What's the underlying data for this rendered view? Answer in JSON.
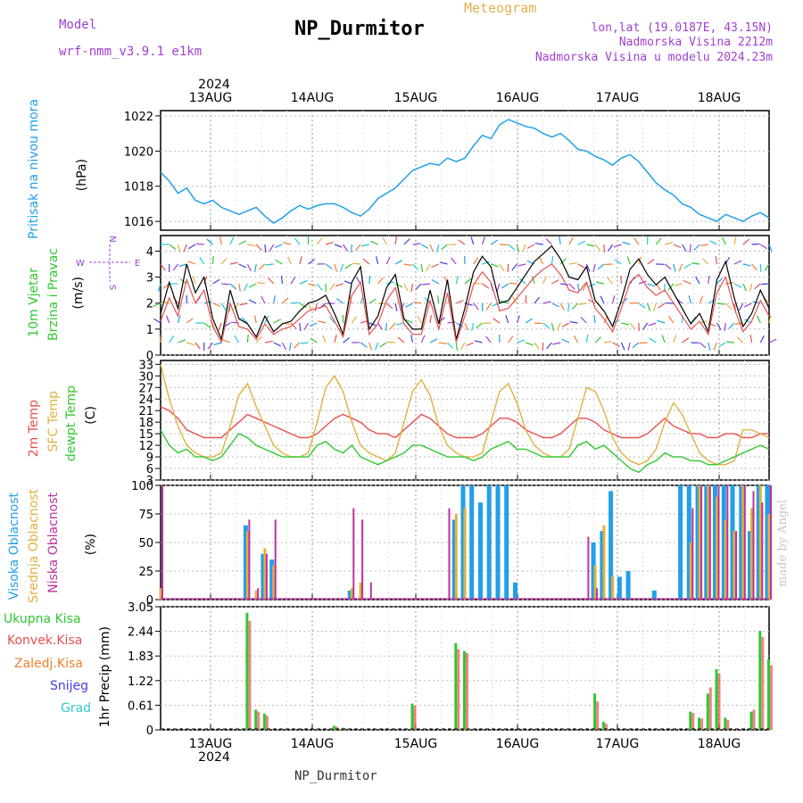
{
  "header": {
    "title": "NP_Durmitor",
    "model_label": "Model",
    "model_name": "wrf-nmm_v3.9.1 e1km",
    "meteogram_label": "Meteogram",
    "location_line1": "lon,lat (19.0187E, 43.15N)",
    "location_line2": "Nadmorska Visina 2212m",
    "location_line3": "Nadmorska Visina u modelu 2024.23m",
    "footer_name": "NP_Durmitor",
    "made_by": "made by Angel"
  },
  "time_axis": {
    "year": "2024",
    "days": [
      "13AUG",
      "14AUG",
      "15AUG",
      "16AUG",
      "17AUG",
      "18AUG"
    ]
  },
  "colors": {
    "pressure": "#20a0e8",
    "temp2m": "#e85050",
    "sfc_temp": "#e0b040",
    "dewpt": "#30c830",
    "high_cloud": "#20a0e8",
    "mid_cloud": "#e0b040",
    "low_cloud": "#c030a0",
    "total_precip": "#30c830",
    "conv_precip": "#e85050",
    "frozen_precip": "#f08030",
    "snow": "#4040e0",
    "hail": "#30c8c8"
  },
  "chart_data": [
    {
      "type": "line",
      "ylabel": "(hPa)",
      "side_label": "Pritisak na nivou mora",
      "yticks": [
        "1016",
        "1018",
        "1020",
        "1022"
      ],
      "ylim": [
        1015.5,
        1022.3
      ],
      "series": [
        {
          "values": [
            1018.8,
            1018.3,
            1017.6,
            1017.9,
            1017.2,
            1017.0,
            1017.2,
            1016.8,
            1016.6,
            1016.4,
            1016.6,
            1016.8,
            1016.3,
            1015.9,
            1016.2,
            1016.6,
            1016.9,
            1016.7,
            1016.9,
            1017.0,
            1017.0,
            1016.8,
            1016.5,
            1016.3,
            1016.7,
            1017.3,
            1017.6,
            1017.9,
            1018.4,
            1018.9,
            1019.1,
            1019.3,
            1019.2,
            1019.6,
            1019.4,
            1019.6,
            1020.3,
            1020.9,
            1020.7,
            1021.5,
            1021.8,
            1021.6,
            1021.4,
            1021.3,
            1021.0,
            1020.8,
            1021.0,
            1020.6,
            1020.1,
            1020.0,
            1019.7,
            1019.5,
            1019.2,
            1019.6,
            1019.8,
            1019.4,
            1018.8,
            1018.2,
            1017.8,
            1017.5,
            1017.0,
            1016.8,
            1016.4,
            1016.2,
            1016.0,
            1016.4,
            1016.2,
            1016.0,
            1016.3,
            1016.5,
            1016.2
          ]
        }
      ]
    },
    {
      "type": "line",
      "ylabel": "(m/s)",
      "side_label_1": "10m Vjetar",
      "side_label_2": "Brzina i Pravac",
      "compass": {
        "n": "N",
        "s": "S",
        "w": "W",
        "e": "E"
      },
      "yticks": [
        "0",
        "1",
        "2",
        "3",
        "4"
      ],
      "ylim": [
        0,
        4.6
      ],
      "series": [
        {
          "values": [
            1.6,
            2.8,
            1.8,
            3.5,
            2.4,
            3.0,
            1.4,
            0.6,
            2.5,
            1.4,
            1.2,
            0.7,
            1.5,
            0.9,
            1.2,
            1.3,
            1.7,
            2.0,
            2.1,
            2.3,
            1.6,
            0.8,
            2.8,
            3.4,
            1.0,
            1.5,
            2.6,
            3.1,
            1.4,
            1.0,
            1.0,
            2.5,
            1.2,
            2.9,
            0.6,
            1.8,
            3.2,
            3.8,
            3.4,
            2.0,
            2.1,
            2.6,
            3.1,
            3.6,
            3.9,
            4.2,
            3.7,
            3.0,
            2.9,
            3.4,
            2.1,
            1.7,
            1.1,
            2.1,
            3.3,
            3.7,
            3.1,
            2.7,
            3.0,
            2.4,
            1.8,
            1.2,
            1.6,
            0.9,
            2.9,
            3.6,
            2.2,
            1.1,
            1.6,
            2.5,
            1.8
          ]
        },
        {
          "values": [
            1.3,
            2.2,
            1.5,
            2.9,
            2.0,
            2.5,
            1.1,
            0.5,
            2.0,
            1.1,
            1.0,
            0.6,
            1.2,
            0.8,
            1.0,
            1.1,
            1.4,
            1.7,
            1.8,
            1.9,
            1.3,
            0.7,
            2.3,
            2.8,
            0.8,
            1.2,
            2.1,
            2.6,
            1.2,
            0.8,
            0.8,
            2.1,
            1.0,
            2.4,
            0.5,
            1.5,
            2.7,
            3.2,
            2.8,
            1.7,
            1.8,
            2.2,
            2.6,
            3.0,
            3.3,
            3.5,
            3.1,
            2.5,
            2.4,
            2.8,
            1.8,
            1.4,
            0.9,
            1.8,
            2.8,
            3.1,
            2.6,
            2.3,
            2.5,
            2.0,
            1.5,
            1.0,
            1.3,
            0.8,
            2.4,
            3.0,
            1.8,
            0.9,
            1.3,
            2.1,
            1.5
          ]
        }
      ]
    },
    {
      "type": "line",
      "ylabel": "(C)",
      "side_label_1": "2m Temp",
      "side_label_2": "SFC Temp",
      "side_label_3": "dewpt Temp",
      "yticks": [
        "3",
        "6",
        "9",
        "12",
        "15",
        "18",
        "21",
        "24",
        "27",
        "30",
        "33"
      ],
      "ylim": [
        3,
        34
      ],
      "series": [
        {
          "name": "2m Temp",
          "values": [
            22,
            21,
            19,
            16,
            15,
            14,
            14,
            14,
            16,
            18,
            20,
            19,
            18,
            17,
            16,
            15,
            14,
            14,
            15,
            17,
            19,
            20,
            19,
            18,
            16,
            15,
            15,
            14,
            16,
            18,
            20,
            19,
            17,
            15,
            14,
            14,
            14,
            15,
            17,
            19,
            19,
            18,
            16,
            15,
            14,
            14,
            15,
            17,
            19,
            19,
            18,
            16,
            15,
            14,
            14,
            14,
            15,
            17,
            19,
            17,
            16,
            15,
            15,
            14,
            14,
            15,
            15,
            14,
            14,
            15,
            15
          ]
        },
        {
          "name": "SFC Temp",
          "values": [
            33,
            24,
            17,
            12,
            10,
            9,
            9,
            10,
            17,
            25,
            28,
            22,
            17,
            12,
            10,
            9,
            9,
            10,
            18,
            27,
            30,
            26,
            18,
            12,
            10,
            9,
            8,
            10,
            18,
            26,
            29,
            25,
            17,
            12,
            10,
            9,
            9,
            10,
            18,
            26,
            28,
            23,
            16,
            12,
            10,
            9,
            9,
            11,
            19,
            27,
            26,
            21,
            14,
            10,
            8,
            7,
            8,
            11,
            18,
            23,
            20,
            15,
            10,
            8,
            7,
            7,
            8,
            16,
            16,
            15,
            14
          ]
        },
        {
          "name": "dewpt Temp",
          "values": [
            16,
            12,
            10,
            11,
            9,
            9,
            8,
            9,
            12,
            15,
            14,
            12,
            11,
            10,
            9,
            9,
            9,
            9,
            12,
            13,
            11,
            10,
            12,
            9,
            8,
            7,
            8,
            9,
            10,
            12,
            12,
            11,
            10,
            9,
            9,
            9,
            8,
            9,
            11,
            12,
            13,
            11,
            11,
            10,
            9,
            9,
            9,
            9,
            12,
            13,
            11,
            12,
            10,
            8,
            6,
            5,
            7,
            8,
            10,
            9,
            9,
            8,
            8,
            7,
            7,
            8,
            9,
            10,
            11,
            12,
            11
          ]
        }
      ]
    },
    {
      "type": "bar",
      "ylabel": "(%)",
      "side_label_1": "Visoka Oblacnost",
      "side_label_2": "Srednja Oblacnost",
      "side_label_3": "Niska Oblacnost",
      "yticks": [
        "0",
        "25",
        "50",
        "75",
        "100"
      ],
      "ylim": [
        0,
        100
      ],
      "series": [
        {
          "name": "Visoka Oblacnost",
          "values": [
            0,
            0,
            0,
            0,
            0,
            0,
            0,
            0,
            0,
            0,
            65,
            0,
            40,
            35,
            0,
            0,
            0,
            0,
            0,
            0,
            0,
            0,
            8,
            0,
            0,
            0,
            0,
            0,
            0,
            0,
            0,
            0,
            0,
            0,
            70,
            100,
            100,
            85,
            100,
            100,
            100,
            15,
            0,
            0,
            0,
            0,
            0,
            0,
            0,
            0,
            50,
            60,
            95,
            20,
            25,
            0,
            0,
            8,
            0,
            0,
            100,
            100,
            100,
            100,
            100,
            100,
            100,
            100,
            60,
            100,
            100
          ]
        },
        {
          "name": "Srednja Oblacnost",
          "values": [
            10,
            0,
            0,
            0,
            0,
            0,
            0,
            0,
            0,
            0,
            60,
            8,
            45,
            30,
            0,
            0,
            0,
            0,
            0,
            0,
            0,
            0,
            10,
            15,
            0,
            0,
            0,
            0,
            0,
            0,
            0,
            0,
            0,
            0,
            75,
            80,
            0,
            0,
            0,
            0,
            0,
            0,
            0,
            0,
            0,
            0,
            0,
            0,
            0,
            0,
            30,
            65,
            20,
            0,
            0,
            0,
            0,
            0,
            0,
            0,
            0,
            50,
            100,
            100,
            90,
            70,
            60,
            100,
            80,
            100,
            75
          ]
        },
        {
          "name": "Niska Oblacnost",
          "values": [
            100,
            0,
            0,
            0,
            0,
            0,
            0,
            0,
            0,
            0,
            70,
            10,
            40,
            70,
            0,
            0,
            0,
            0,
            0,
            0,
            0,
            0,
            80,
            70,
            15,
            0,
            0,
            0,
            0,
            0,
            0,
            0,
            0,
            80,
            0,
            0,
            0,
            0,
            0,
            0,
            0,
            0,
            0,
            0,
            0,
            0,
            0,
            0,
            0,
            55,
            10,
            0,
            0,
            0,
            0,
            0,
            0,
            0,
            0,
            0,
            0,
            80,
            100,
            100,
            100,
            100,
            60,
            100,
            95,
            85,
            100
          ]
        }
      ]
    },
    {
      "type": "bar",
      "ylabel": "1hr Precip (mm)",
      "legend": [
        "Ukupna Kisa",
        "Konvek.Kisa",
        "Zaledj.Kisa",
        "Snijeg",
        "Grad"
      ],
      "yticks": [
        "0",
        "0.61",
        "1.22",
        "1.83",
        "2.44",
        "3.05"
      ],
      "ylim": [
        0,
        3.05
      ],
      "series": [
        {
          "name": "Ukupna Kisa",
          "values": [
            0,
            0,
            0,
            0,
            0,
            0,
            0,
            0,
            0,
            0,
            2.9,
            0.5,
            0.4,
            0,
            0,
            0,
            0,
            0,
            0,
            0,
            0.1,
            0.05,
            0,
            0,
            0,
            0,
            0,
            0,
            0,
            0.65,
            0,
            0,
            0,
            0,
            2.15,
            1.95,
            0,
            0,
            0,
            0,
            0,
            0,
            0,
            0,
            0,
            0,
            0,
            0,
            0,
            0,
            0.9,
            0.2,
            0,
            0,
            0,
            0,
            0,
            0,
            0,
            0,
            0,
            0.45,
            0.3,
            0.9,
            1.5,
            0.3,
            0,
            0,
            0.45,
            2.45,
            1.75
          ]
        },
        {
          "name": "Konvek.Kisa",
          "values": [
            0,
            0,
            0,
            0,
            0,
            0,
            0,
            0,
            0,
            0,
            2.7,
            0.45,
            0.35,
            0,
            0,
            0,
            0,
            0,
            0,
            0,
            0.08,
            0.04,
            0,
            0,
            0,
            0,
            0,
            0,
            0,
            0.6,
            0,
            0,
            0,
            0,
            2.0,
            1.9,
            0,
            0,
            0,
            0,
            0,
            0,
            0,
            0,
            0,
            0,
            0,
            0,
            0,
            0,
            0.7,
            0.15,
            0,
            0,
            0,
            0,
            0,
            0,
            0,
            0,
            0,
            0.42,
            0.28,
            1.05,
            1.4,
            0.25,
            0,
            0,
            0.5,
            2.3,
            1.6
          ]
        }
      ]
    }
  ]
}
